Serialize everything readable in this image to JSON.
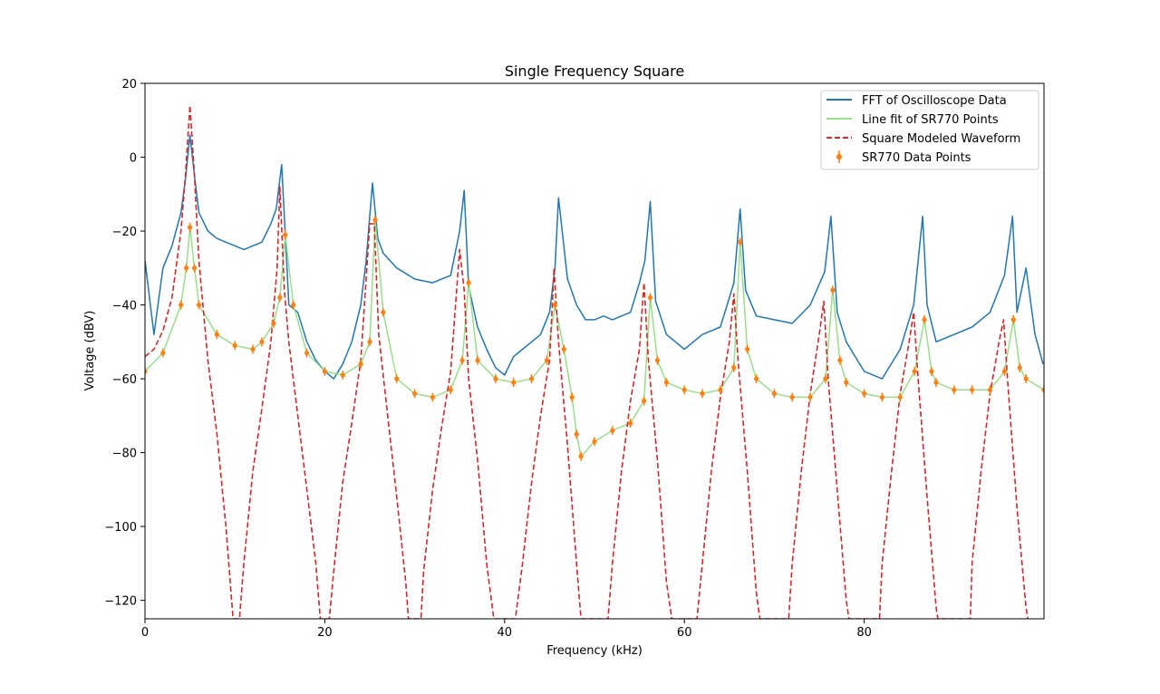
{
  "chart_data": {
    "type": "line",
    "title": "Single Frequency Square",
    "xlabel": "Frequency (kHz)",
    "ylabel": "Voltage (dBV)",
    "xlim": [
      0,
      100
    ],
    "ylim": [
      -125,
      20
    ],
    "xticks": [
      0,
      20,
      40,
      60,
      80
    ],
    "yticks": [
      20,
      0,
      -20,
      -40,
      -60,
      -80,
      -100,
      -120
    ],
    "grid": false,
    "legend_position": "top-right",
    "legend": [
      {
        "label": "FFT of Oscilloscope Data",
        "color": "#1f77b4",
        "style": "solid"
      },
      {
        "label": "Line fit of SR770 Points",
        "color": "#98df8a",
        "style": "solid"
      },
      {
        "label": "Square Modeled Waveform",
        "color": "#d62728",
        "style": "dashed"
      },
      {
        "label": "SR770 Data Points",
        "color": "#ff7f0e",
        "style": "errorbar"
      }
    ],
    "series": [
      {
        "name": "FFT of Oscilloscope Data",
        "color": "#1f77b4",
        "x": [
          0,
          1,
          2,
          3,
          4,
          4.5,
          5,
          5.5,
          6,
          7,
          8,
          9,
          10,
          11,
          12,
          13,
          14,
          14.6,
          15.2,
          15.8,
          16,
          17,
          18,
          19,
          20,
          21,
          22,
          23,
          24,
          24.6,
          25.3,
          25.9,
          26.5,
          28,
          30,
          32,
          34,
          35,
          35.5,
          36,
          37,
          38,
          39,
          40,
          41,
          42,
          43,
          44,
          45,
          45.6,
          46,
          47,
          48,
          49,
          50,
          51,
          52,
          53,
          54,
          55,
          55.6,
          56.2,
          56.8,
          58,
          60,
          62,
          64,
          65.5,
          66.2,
          66.8,
          68,
          70,
          72,
          74,
          75.6,
          76.3,
          77,
          78,
          80,
          82,
          84,
          85.5,
          86.5,
          87,
          88,
          90,
          92,
          94,
          95.6,
          96.5,
          97,
          98,
          99,
          99.9
        ],
        "y": [
          -28,
          -48,
          -30,
          -24,
          -15,
          -6,
          6,
          -5,
          -15,
          -20,
          -22,
          -23,
          -24,
          -25,
          -24,
          -23,
          -18,
          -14,
          -2,
          -30,
          -40,
          -42,
          -50,
          -55,
          -58,
          -60,
          -56,
          -50,
          -40,
          -28,
          -7,
          -22,
          -26,
          -30,
          -33,
          -34,
          -32,
          -20,
          -9,
          -35,
          -46,
          -52,
          -57,
          -59,
          -54,
          -52,
          -50,
          -48,
          -42,
          -30,
          -11,
          -33,
          -40,
          -44,
          -44,
          -43,
          -44,
          -43,
          -42,
          -34,
          -28,
          -12,
          -39,
          -48,
          -52,
          -48,
          -46,
          -34,
          -14,
          -36,
          -43,
          -44,
          -45,
          -40,
          -31,
          -16,
          -42,
          -50,
          -58,
          -60,
          -52,
          -40,
          -16,
          -40,
          -50,
          -48,
          -46,
          -42,
          -32,
          -16,
          -42,
          -30,
          -48,
          -56
        ],
        "style": "solid"
      },
      {
        "name": "Line fit of SR770 Points",
        "color": "#98df8a",
        "x": [
          0,
          2,
          4,
          4.6,
          5,
          5.5,
          6,
          8,
          10,
          12,
          13,
          14.3,
          15,
          15.6,
          16.5,
          18,
          20,
          22,
          24,
          25,
          25.6,
          26.5,
          28,
          30,
          32,
          34,
          35.3,
          36,
          37,
          39,
          41,
          43,
          44.7,
          45.6,
          46.6,
          47.5,
          48,
          48.5,
          50,
          52,
          54,
          55.5,
          56.2,
          57,
          58,
          60,
          62,
          64,
          65.5,
          66.2,
          67,
          68,
          70,
          72,
          74,
          75.7,
          76.5,
          77.3,
          78,
          80,
          82,
          84,
          85.6,
          86.7,
          87.5,
          88,
          90,
          92,
          94,
          95.6,
          96.6,
          97.3,
          98,
          100
        ],
        "y": [
          -58,
          -53,
          -40,
          -30,
          -19,
          -30,
          -40,
          -48,
          -51,
          -52,
          -50,
          -45,
          -38,
          -21,
          -40,
          -53,
          -58,
          -59,
          -56,
          -50,
          -17,
          -42,
          -60,
          -64,
          -65,
          -63,
          -55,
          -34,
          -55,
          -60,
          -61,
          -60,
          -55,
          -40,
          -52,
          -65,
          -75,
          -81,
          -77,
          -74,
          -72,
          -66,
          -38,
          -55,
          -61,
          -63,
          -64,
          -63,
          -57,
          -23,
          -52,
          -60,
          -64,
          -65,
          -65,
          -60,
          -36,
          -55,
          -61,
          -64,
          -65,
          -65,
          -58,
          -44,
          -58,
          -61,
          -63,
          -63,
          -63,
          -58,
          -44,
          -57,
          -60,
          -63
        ],
        "style": "solid"
      },
      {
        "name": "SR770 Data Points",
        "color": "#ff7f0e",
        "x": [
          0,
          2,
          4,
          4.6,
          5,
          5.5,
          6,
          8,
          10,
          12,
          13,
          14.3,
          15,
          15.6,
          16.5,
          18,
          20,
          22,
          24,
          25,
          25.6,
          26.5,
          28,
          30,
          32,
          34,
          35.3,
          36,
          37,
          39,
          41,
          43,
          44.7,
          45.6,
          46.6,
          47.5,
          48,
          48.5,
          50,
          52,
          54,
          55.5,
          56.2,
          57,
          58,
          60,
          62,
          64,
          65.5,
          66.2,
          67,
          68,
          70,
          72,
          74,
          75.7,
          76.5,
          77.3,
          78,
          80,
          82,
          84,
          85.6,
          86.7,
          87.5,
          88,
          90,
          92,
          94,
          95.6,
          96.6,
          97.3,
          98,
          100
        ],
        "y": [
          -58,
          -53,
          -40,
          -30,
          -19,
          -30,
          -40,
          -48,
          -51,
          -52,
          -50,
          -45,
          -38,
          -21,
          -40,
          -53,
          -58,
          -59,
          -56,
          -50,
          -17,
          -42,
          -60,
          -64,
          -65,
          -63,
          -55,
          -34,
          -55,
          -60,
          -61,
          -60,
          -55,
          -40,
          -52,
          -65,
          -75,
          -81,
          -77,
          -74,
          -72,
          -66,
          -38,
          -55,
          -61,
          -63,
          -64,
          -63,
          -57,
          -23,
          -52,
          -60,
          -64,
          -65,
          -65,
          -60,
          -36,
          -55,
          -61,
          -64,
          -65,
          -65,
          -58,
          -44,
          -58,
          -61,
          -63,
          -63,
          -63,
          -58,
          -44,
          -57,
          -60,
          -63
        ],
        "style": "errorbar"
      },
      {
        "name": "Square Modeled Waveform",
        "color": "#d62728",
        "x": [
          0,
          1,
          2,
          3,
          4,
          4.5,
          5,
          5.5,
          6,
          7,
          8,
          9,
          9.8,
          10.5,
          11,
          12,
          13,
          14,
          14.7,
          15,
          15.5,
          16,
          17,
          18,
          19,
          19.5,
          20.5,
          21,
          22,
          23,
          24,
          25,
          25.5,
          26,
          27,
          28,
          29,
          29.3,
          30.7,
          31,
          32,
          33,
          34,
          35,
          35.5,
          36,
          37,
          38,
          38.8,
          41.2,
          42,
          43,
          44,
          45,
          45.5,
          46,
          47,
          48,
          48.5,
          51.5,
          52,
          53,
          54,
          55,
          55.5,
          56,
          57,
          58,
          58.6,
          61.4,
          62,
          63,
          64,
          65,
          65.5,
          66,
          67,
          68,
          68.4,
          71.6,
          72,
          73,
          74,
          75,
          75.5,
          76,
          77,
          78,
          78.3,
          81.7,
          82,
          83,
          84,
          85,
          85.5,
          86,
          87,
          88,
          88.2,
          91.8,
          92,
          93,
          94,
          95,
          95.5,
          96,
          97,
          98,
          98.2
        ],
        "y": [
          -54,
          -52,
          -47,
          -38,
          -20,
          -5,
          14,
          -5,
          -28,
          -55,
          -75,
          -100,
          -125,
          -125,
          -110,
          -85,
          -68,
          -50,
          -30,
          -8,
          -36,
          -50,
          -70,
          -90,
          -110,
          -125,
          -125,
          -112,
          -88,
          -72,
          -55,
          -18,
          -18,
          -48,
          -70,
          -92,
          -115,
          -125,
          -125,
          -112,
          -90,
          -73,
          -58,
          -25,
          -36,
          -60,
          -82,
          -110,
          -125,
          -125,
          -110,
          -88,
          -70,
          -55,
          -30,
          -50,
          -78,
          -110,
          -125,
          -125,
          -110,
          -85,
          -66,
          -52,
          -34,
          -55,
          -82,
          -115,
          -125,
          -125,
          -110,
          -85,
          -65,
          -50,
          -37,
          -56,
          -85,
          -118,
          -125,
          -125,
          -110,
          -85,
          -64,
          -48,
          -39,
          -60,
          -90,
          -120,
          -125,
          -125,
          -110,
          -86,
          -64,
          -50,
          -42,
          -60,
          -92,
          -122,
          -125,
          -125,
          -110,
          -85,
          -64,
          -50,
          -44,
          -62,
          -95,
          -122,
          -125
        ],
        "style": "dashed"
      }
    ]
  }
}
